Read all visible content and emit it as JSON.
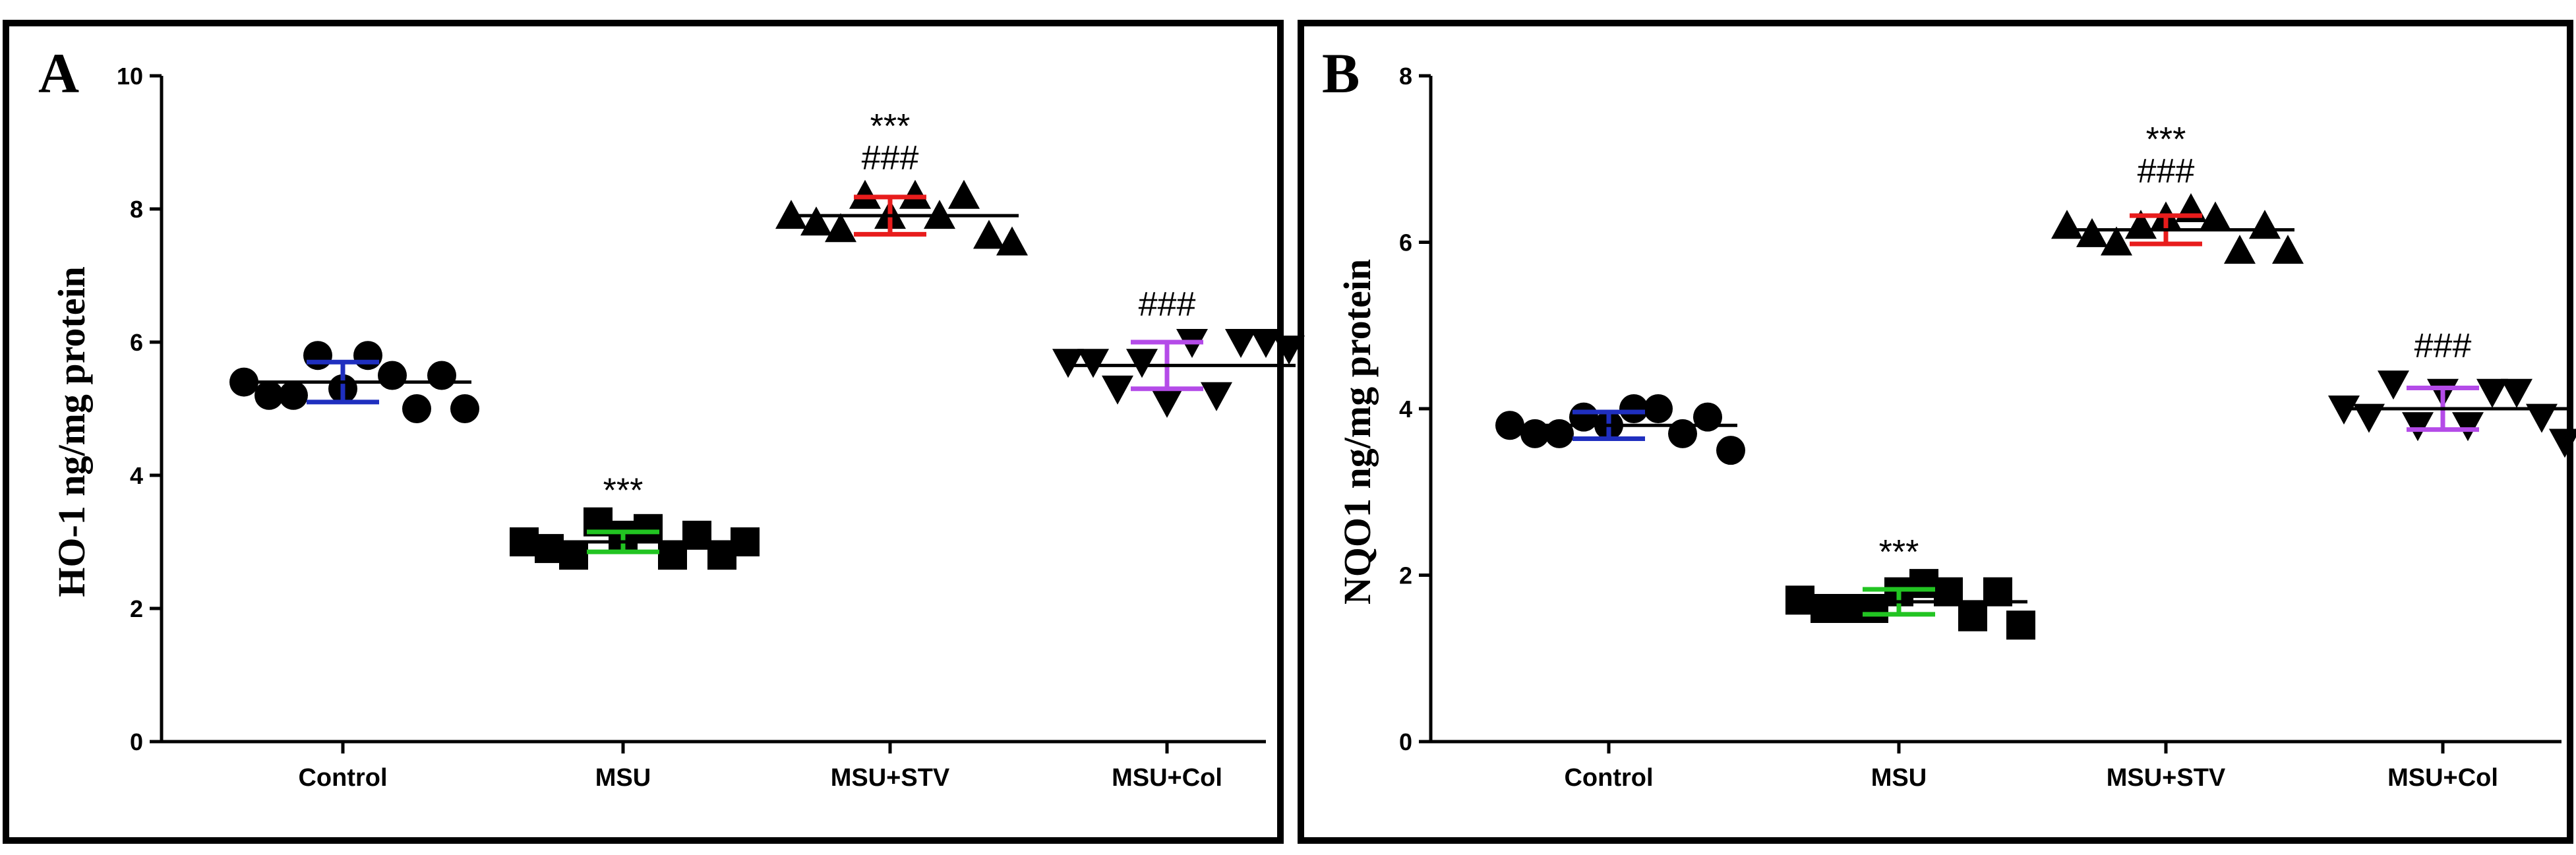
{
  "colors": {
    "Control": "#1f2fbf",
    "MSU": "#22c422",
    "MSU+STV": "#e81c1c",
    "MSU+Col": "#b44be8",
    "marker": "#000000"
  },
  "chart_data": [
    {
      "type": "scatter",
      "panel_label": "A",
      "ylabel": "HO-1 ng/mg protein",
      "xlabel": "",
      "ylim": [
        0,
        10
      ],
      "yticks": [
        "0",
        "2",
        "4",
        "6",
        "8",
        "10"
      ],
      "categories": [
        "Control",
        "MSU",
        "MSU+STV",
        "MSU+Col"
      ],
      "markers": [
        "circle",
        "square",
        "triangle-up",
        "triangle-down"
      ],
      "series": [
        {
          "name": "Control",
          "values": [
            5.4,
            5.2,
            5.2,
            5.8,
            5.3,
            5.8,
            5.5,
            5.0,
            5.5,
            5.0
          ],
          "mean": 5.4,
          "sd": 0.3,
          "annotations": []
        },
        {
          "name": "MSU",
          "values": [
            3.0,
            2.9,
            2.8,
            3.3,
            3.1,
            3.2,
            2.8,
            3.1,
            2.8,
            3.0
          ],
          "mean": 3.0,
          "sd": 0.15,
          "annotations": [
            "***"
          ]
        },
        {
          "name": "MSU+STV",
          "values": [
            7.9,
            7.8,
            7.7,
            8.2,
            7.9,
            8.2,
            7.9,
            8.2,
            7.6,
            7.5
          ],
          "mean": 7.9,
          "sd": 0.28,
          "annotations": [
            "***",
            "###"
          ]
        },
        {
          "name": "MSU+Col",
          "values": [
            5.7,
            5.7,
            5.3,
            5.7,
            5.1,
            6.0,
            5.2,
            6.0,
            6.0,
            5.9
          ],
          "mean": 5.65,
          "sd": 0.35,
          "annotations": [
            "###"
          ]
        }
      ]
    },
    {
      "type": "scatter",
      "panel_label": "B",
      "ylabel": "NQO1 ng/mg protein",
      "xlabel": "",
      "ylim": [
        0,
        8
      ],
      "yticks": [
        "0",
        "2",
        "4",
        "6",
        "8"
      ],
      "categories": [
        "Control",
        "MSU",
        "MSU+STV",
        "MSU+Col"
      ],
      "markers": [
        "circle",
        "square",
        "triangle-up",
        "triangle-down"
      ],
      "series": [
        {
          "name": "Control",
          "values": [
            3.8,
            3.7,
            3.7,
            3.9,
            3.8,
            4.0,
            4.0,
            3.7,
            3.9,
            3.5
          ],
          "mean": 3.8,
          "sd": 0.16,
          "annotations": []
        },
        {
          "name": "MSU",
          "values": [
            1.7,
            1.6,
            1.6,
            1.6,
            1.8,
            1.9,
            1.8,
            1.5,
            1.8,
            1.4
          ],
          "mean": 1.68,
          "sd": 0.15,
          "annotations": [
            "***"
          ]
        },
        {
          "name": "MSU+STV",
          "values": [
            6.2,
            6.1,
            6.0,
            6.2,
            6.3,
            6.4,
            6.3,
            5.9,
            6.2,
            5.9
          ],
          "mean": 6.15,
          "sd": 0.17,
          "annotations": [
            "***",
            "###"
          ]
        },
        {
          "name": "MSU+Col",
          "values": [
            4.0,
            3.9,
            4.3,
            3.8,
            4.2,
            3.8,
            4.2,
            4.2,
            3.9,
            3.6
          ],
          "mean": 4.0,
          "sd": 0.25,
          "annotations": [
            "###"
          ]
        }
      ]
    }
  ]
}
